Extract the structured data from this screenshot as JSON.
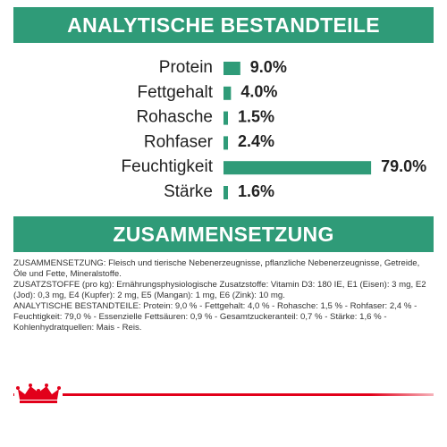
{
  "header": {
    "title": "ANALYTISCHE BESTANDTEILE"
  },
  "chart_data": {
    "type": "bar",
    "orientation": "horizontal",
    "categories": [
      "Protein",
      "Fettgehalt",
      "Rohasche",
      "Rohfaser",
      "Feuchtigkeit",
      "Stärke"
    ],
    "values": [
      9.0,
      4.0,
      1.5,
      2.4,
      79.0,
      1.6
    ],
    "value_labels": [
      "9.0%",
      "4.0%",
      "1.5%",
      "2.4%",
      "79.0%",
      "1.6%"
    ],
    "color": "#2f9b78"
  },
  "section": {
    "title": "ZUSAMMENSETZUNG",
    "paragraphs": [
      "ZUSAMMENSETZUNG: Fleisch und tierische Nebenerzeugnisse, pflanzliche Nebenerzeugnisse, Getreide, Öle und Fette, Mineralstoffe.",
      "ZUSATZSTOFFE (pro kg): Ernährungsphysiologische Zusatzstoffe: Vitamin D3: 180 IE, E1 (Eisen): 3 mg, E2 (Jod): 0,3 mg, E4 (Kupfer): 2 mg, E5 (Mangan): 1 mg, E6 (Zink): 10 mg.",
      "ANALYTISCHE BESTANDTEILE: Protein: 9,0 % - Fettgehalt: 4,0 % - Rohasche: 1,5 % - Rohfaser: 2,4 % - Feuchtigkeit: 79,0 % - Essenzielle Fettsäuren: 0,9 % - Gesamtzuckeranteil: 0,7 % - Stärke: 1,6 % - Kohlenhydratquellen: Mais - Reis."
    ]
  }
}
